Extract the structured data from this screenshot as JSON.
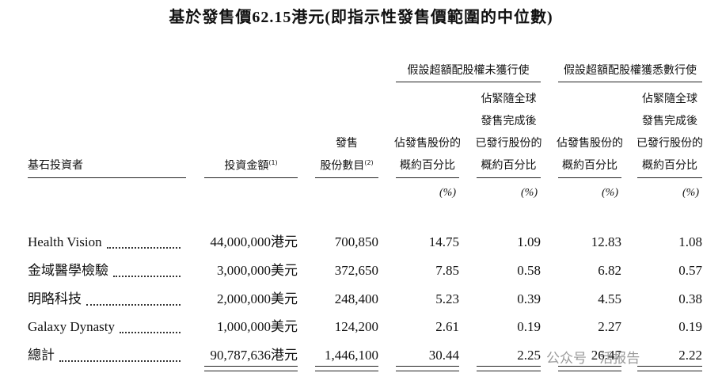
{
  "title": "基於發售價62.15港元(即指示性發售價範圍的中位數)",
  "groups": [
    "假設超額配股權未獲行使",
    "假設超額配股權獲悉數行使"
  ],
  "columns": [
    {
      "lines": [
        "基石投資者"
      ]
    },
    {
      "lines": [
        "投資金額"
      ],
      "note": "(1)"
    },
    {
      "lines": [
        "發售",
        "股份數目"
      ],
      "note": "(2)"
    },
    {
      "lines": [
        "佔發售股份的",
        "概約百分比"
      ]
    },
    {
      "lines": [
        "佔緊隨全球",
        "發售完成後",
        "已發行股份的",
        "概約百分比"
      ]
    },
    {
      "lines": [
        "佔發售股份的",
        "概約百分比"
      ]
    },
    {
      "lines": [
        "佔緊隨全球",
        "發售完成後",
        "已發行股份的",
        "概約百分比"
      ]
    }
  ],
  "units": [
    "(%)",
    "(%)",
    "(%)",
    "(%)"
  ],
  "rows": [
    [
      "Health Vision",
      "44,000,000港元",
      "700,850",
      "14.75",
      "1.09",
      "12.83",
      "1.08"
    ],
    [
      "金域醫學檢驗",
      "3,000,000美元",
      "372,650",
      "7.85",
      "0.58",
      "6.82",
      "0.57"
    ],
    [
      "明略科技",
      "2,000,000美元",
      "248,400",
      "5.23",
      "0.39",
      "4.55",
      "0.38"
    ],
    [
      "Galaxy Dynasty",
      "1,000,000美元",
      "124,200",
      "2.61",
      "0.19",
      "2.27",
      "0.19"
    ],
    [
      "總計",
      "90,787,636港元",
      "1,446,100",
      "30.44",
      "2.25",
      "26.47",
      "2.22"
    ]
  ],
  "watermark": "公众号 · 活报告"
}
